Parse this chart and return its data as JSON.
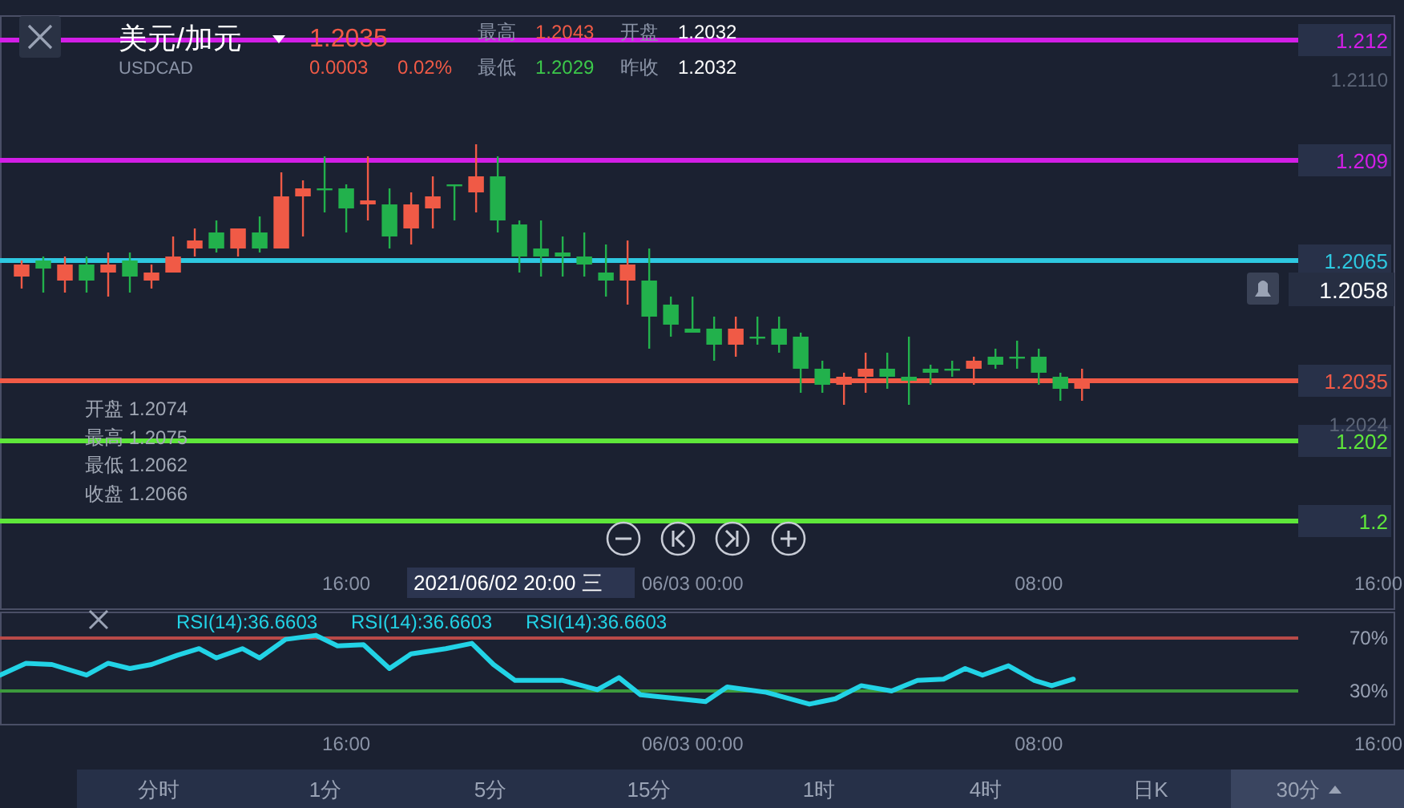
{
  "chart_data": [
    {
      "type": "candlestick",
      "title": "美元/加元",
      "subtitle": "USDCAD",
      "x": [
        "2021-06-02T08:30",
        "2021-06-02T09:00",
        "2021-06-02T09:30",
        "2021-06-02T10:00",
        "2021-06-02T10:30",
        "2021-06-02T11:00",
        "2021-06-02T11:30",
        "2021-06-02T12:00",
        "2021-06-02T12:30",
        "2021-06-02T13:00",
        "2021-06-02T13:30",
        "2021-06-02T14:00",
        "2021-06-02T14:30",
        "2021-06-02T15:00",
        "2021-06-02T15:30",
        "2021-06-02T16:00",
        "2021-06-02T16:30",
        "2021-06-02T17:00",
        "2021-06-02T17:30",
        "2021-06-02T18:00",
        "2021-06-02T18:30",
        "2021-06-02T19:00",
        "2021-06-02T19:30",
        "2021-06-02T20:00",
        "2021-06-02T20:30",
        "2021-06-02T21:00",
        "2021-06-02T21:30",
        "2021-06-02T22:00",
        "2021-06-02T22:30",
        "2021-06-02T23:00",
        "2021-06-02T23:30",
        "2021-06-03T00:00",
        "2021-06-03T00:30",
        "2021-06-03T01:00",
        "2021-06-03T01:30",
        "2021-06-03T02:00",
        "2021-06-03T02:30",
        "2021-06-03T03:00",
        "2021-06-03T03:30",
        "2021-06-03T04:00",
        "2021-06-03T04:30",
        "2021-06-03T05:00",
        "2021-06-03T05:30",
        "2021-06-03T06:00",
        "2021-06-03T06:30",
        "2021-06-03T07:00",
        "2021-06-03T07:30",
        "2021-06-03T08:00",
        "2021-06-03T08:30",
        "2021-06-03T09:00"
      ],
      "ohlc": [
        [
          1.2061,
          1.2065,
          1.2058,
          1.2064
        ],
        [
          1.2065,
          1.2066,
          1.2057,
          1.2063
        ],
        [
          1.206,
          1.2066,
          1.2057,
          1.2064
        ],
        [
          1.2064,
          1.2066,
          1.2057,
          1.206
        ],
        [
          1.2062,
          1.2067,
          1.2056,
          1.2064
        ],
        [
          1.2065,
          1.2067,
          1.2057,
          1.2061
        ],
        [
          1.206,
          1.2064,
          1.2058,
          1.2062
        ],
        [
          1.2062,
          1.2071,
          1.2062,
          1.2066
        ],
        [
          1.2068,
          1.2073,
          1.2066,
          1.207
        ],
        [
          1.2072,
          1.2075,
          1.2067,
          1.2068
        ],
        [
          1.2068,
          1.2073,
          1.2066,
          1.2073
        ],
        [
          1.2072,
          1.2076,
          1.2067,
          1.2068
        ],
        [
          1.2068,
          1.2087,
          1.2068,
          1.2081
        ],
        [
          1.2081,
          1.2085,
          1.2071,
          1.2083
        ],
        [
          1.2083,
          1.2091,
          1.2077,
          1.2083
        ],
        [
          1.2083,
          1.2084,
          1.2072,
          1.2078
        ],
        [
          1.2079,
          1.2091,
          1.2075,
          1.208
        ],
        [
          1.2079,
          1.2083,
          1.2068,
          1.2071
        ],
        [
          1.2073,
          1.2082,
          1.2069,
          1.2079
        ],
        [
          1.2078,
          1.2086,
          1.2073,
          1.2081
        ],
        [
          1.2084,
          1.2084,
          1.2075,
          1.2084
        ],
        [
          1.2082,
          1.2094,
          1.2077,
          1.2086
        ],
        [
          1.2086,
          1.2091,
          1.2072,
          1.2075
        ],
        [
          1.2074,
          1.2075,
          1.2062,
          1.2066
        ],
        [
          1.2068,
          1.2075,
          1.2061,
          1.2066
        ],
        [
          1.2067,
          1.2071,
          1.2061,
          1.2066
        ],
        [
          1.2066,
          1.2072,
          1.2061,
          1.2064
        ],
        [
          1.2062,
          1.2069,
          1.2056,
          1.206
        ],
        [
          1.206,
          1.207,
          1.2054,
          1.2064
        ],
        [
          1.206,
          1.2068,
          1.2043,
          1.2051
        ],
        [
          1.2054,
          1.2056,
          1.2046,
          1.2049
        ],
        [
          1.2048,
          1.2056,
          1.2047,
          1.2047
        ],
        [
          1.2048,
          1.2051,
          1.204,
          1.2044
        ],
        [
          1.2044,
          1.2051,
          1.2041,
          1.2048
        ],
        [
          1.2046,
          1.2051,
          1.2044,
          1.2046
        ],
        [
          1.2048,
          1.2051,
          1.2042,
          1.2044
        ],
        [
          1.2046,
          1.2047,
          1.2032,
          1.2038
        ],
        [
          1.2038,
          1.204,
          1.2032,
          1.2034
        ],
        [
          1.2034,
          1.2037,
          1.2029,
          1.2036
        ],
        [
          1.2036,
          1.2042,
          1.2032,
          1.2038
        ],
        [
          1.2038,
          1.2042,
          1.2033,
          1.2036
        ],
        [
          1.2036,
          1.2046,
          1.2029,
          1.2035
        ],
        [
          1.2038,
          1.2039,
          1.2034,
          1.2037
        ],
        [
          1.2038,
          1.204,
          1.2036,
          1.2038
        ],
        [
          1.2038,
          1.2041,
          1.2034,
          1.204
        ],
        [
          1.2041,
          1.2043,
          1.2038,
          1.2039
        ],
        [
          1.2041,
          1.2045,
          1.2038,
          1.2041
        ],
        [
          1.2041,
          1.2043,
          1.2034,
          1.2037
        ],
        [
          1.2036,
          1.2037,
          1.203,
          1.2033
        ],
        [
          1.2033,
          1.2038,
          1.203,
          1.2035
        ]
      ],
      "xlim": [
        "2021-06-02T08:00",
        "2021-06-03T16:13"
      ],
      "ylim": [
        1.1978,
        1.2126
      ],
      "xticks": [
        {
          "value": "2021-06-02T16:00",
          "label": "16:00"
        },
        {
          "value": "2021-06-03T00:00",
          "label": "06/03 00:00"
        },
        {
          "value": "2021-06-03T08:00",
          "label": "08:00"
        },
        {
          "value": "2021-06-03T16:00",
          "label": "16:00"
        }
      ],
      "yticks": [
        {
          "value": 1.211,
          "label": "1.2110"
        },
        {
          "value": 1.2024,
          "label": "1.2024"
        }
      ],
      "ref_lines": [
        {
          "axis": "y",
          "value": 1.212,
          "label": "1.212",
          "color": "#d21ee6"
        },
        {
          "axis": "y",
          "value": 1.209,
          "label": "1.209",
          "color": "#d21ee6"
        },
        {
          "axis": "y",
          "value": 1.2065,
          "label": "1.2065",
          "color": "#2ec8e0"
        },
        {
          "axis": "y",
          "value": 1.202,
          "label": "1.202",
          "color": "#5ee63a"
        },
        {
          "axis": "y",
          "value": 1.2,
          "label": "1.2",
          "color": "#5ee63a"
        },
        {
          "axis": "y",
          "value": 1.2035,
          "label": "1.2035",
          "color": "#f05a46"
        }
      ],
      "annotations": [
        "1.2035",
        "0.0003",
        "0.02%",
        "最高",
        "1.2043",
        "开盘",
        "1.2032",
        "最低",
        "1.2029",
        "昨收",
        "1.2032",
        "开盘 1.2074",
        "最高 1.2075",
        "最低 1.2062",
        "收盘 1.2066",
        "2021/06/02 20:00 三",
        "1.2058"
      ]
    },
    {
      "type": "line",
      "x": [
        "2021-06-02T08:00",
        "2021-06-02T08:36",
        "2021-06-02T09:12",
        "2021-06-02T10:00",
        "2021-06-02T10:30",
        "2021-06-02T11:00",
        "2021-06-02T11:30",
        "2021-06-02T12:06",
        "2021-06-02T12:36",
        "2021-06-02T13:00",
        "2021-06-02T13:36",
        "2021-06-02T14:00",
        "2021-06-02T14:36",
        "2021-06-02T15:18",
        "2021-06-02T15:48",
        "2021-06-02T16:24",
        "2021-06-02T17:00",
        "2021-06-02T17:30",
        "2021-06-02T18:18",
        "2021-06-02T18:54",
        "2021-06-02T19:24",
        "2021-06-02T19:54",
        "2021-06-02T21:00",
        "2021-06-02T21:48",
        "2021-06-02T22:18",
        "2021-06-02T22:48",
        "2021-06-03T00:18",
        "2021-06-03T00:48",
        "2021-06-03T01:42",
        "2021-06-03T02:42",
        "2021-06-03T03:18",
        "2021-06-03T03:54",
        "2021-06-03T04:36",
        "2021-06-03T05:12",
        "2021-06-03T05:48",
        "2021-06-03T06:18",
        "2021-06-03T06:42",
        "2021-06-03T07:18",
        "2021-06-03T07:54",
        "2021-06-03T08:18",
        "2021-06-03T08:48"
      ],
      "series": [
        {
          "color": "#22d3e6",
          "values": [
            42,
            51,
            50,
            42,
            51,
            47,
            50,
            57,
            62,
            55,
            62,
            55,
            69,
            72,
            64,
            65,
            47,
            58,
            62,
            66,
            50,
            38,
            38,
            31,
            40,
            27,
            22,
            33,
            29,
            20,
            24,
            34,
            30,
            38,
            39,
            47,
            42,
            49,
            38,
            34,
            39
          ]
        }
      ],
      "xlim": [
        "2021-06-02T08:00",
        "2021-06-03T16:13"
      ],
      "ylim": [
        4.5,
        89.4
      ],
      "xticks": [
        {
          "value": "2021-06-02T16:00",
          "label": "16:00"
        },
        {
          "value": "2021-06-03T00:00",
          "label": "06/03 00:00"
        },
        {
          "value": "2021-06-03T08:00",
          "label": "08:00"
        },
        {
          "value": "2021-06-03T16:00",
          "label": "16:00"
        }
      ],
      "yticks": [
        {
          "value": 70,
          "label": "70%"
        },
        {
          "value": 30,
          "label": "30%"
        }
      ],
      "ref_lines": [
        {
          "axis": "y",
          "value": 70,
          "color": "#b84a48"
        },
        {
          "axis": "y",
          "value": 30,
          "color": "#3c9a3c"
        }
      ],
      "annotations": [
        "RSI(14):36.6603",
        "RSI(14):36.6603",
        "RSI(14):36.6603",
        "分时",
        "1分",
        "5分",
        "15分",
        "1时",
        "4时",
        "日K",
        "30分"
      ]
    }
  ]
}
